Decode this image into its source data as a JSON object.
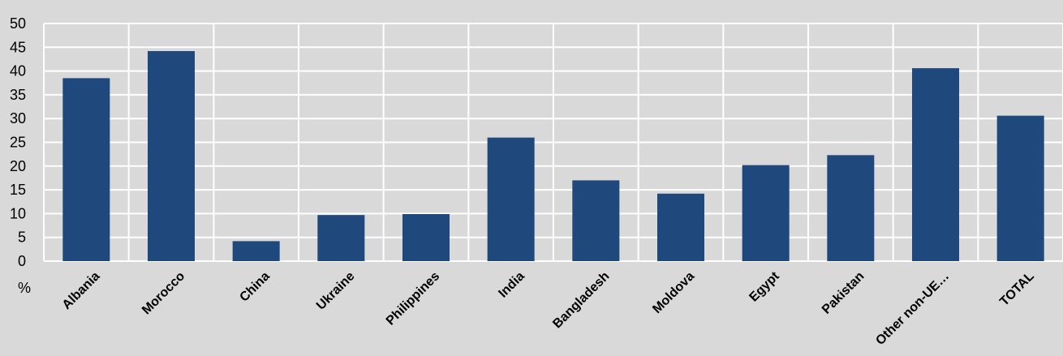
{
  "chart_data": {
    "type": "bar",
    "categories": [
      "Albania",
      "Morocco",
      "China",
      "Ukraine",
      "Philippines",
      "India",
      "Bangladesh",
      "Moldova",
      "Egypt",
      "Pakistan",
      "Other non-UE…",
      "TOTAL"
    ],
    "values": [
      38.5,
      44.2,
      4.2,
      9.7,
      9.9,
      26.0,
      17.0,
      14.2,
      20.2,
      22.3,
      40.6,
      30.6
    ],
    "ylim": [
      0,
      50
    ],
    "yticks": [
      0,
      5,
      10,
      15,
      20,
      25,
      30,
      35,
      40,
      45,
      50
    ],
    "yunit": "%",
    "grid": true,
    "legend": "none"
  },
  "colors": {
    "background": "#d9d9d9",
    "bar": "#1f497d",
    "grid": "#ffffff"
  }
}
